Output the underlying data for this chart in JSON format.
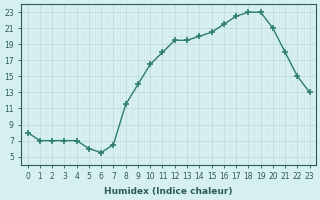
{
  "xlabel": "Humidex (Indice chaleur)",
  "ylabel": "",
  "x": [
    0,
    1,
    2,
    3,
    4,
    5,
    6,
    7,
    8,
    9,
    10,
    11,
    12,
    13,
    14,
    15,
    16,
    17,
    18,
    19,
    20,
    21,
    22,
    23
  ],
  "y": [
    8,
    7,
    7,
    7,
    7,
    6,
    5.5,
    6.5,
    11.5,
    14,
    16.5,
    18,
    19.5,
    19.5,
    20,
    20.5,
    21.5,
    22.5,
    23,
    23,
    21,
    18,
    15,
    13
  ],
  "line_color": "#2e7d6e",
  "marker": "+",
  "marker_size": 4,
  "marker_lw": 1.2,
  "line_width": 1.0,
  "linestyle": "-",
  "bg_color": "#d6f0f0",
  "grid_major_color": "#c4dada",
  "grid_minor_color": "#d0e6e6",
  "ylim": [
    4,
    24
  ],
  "xlim": [
    -0.5,
    23.5
  ],
  "yticks": [
    5,
    7,
    9,
    11,
    13,
    15,
    17,
    19,
    21,
    23
  ],
  "xticks": [
    0,
    1,
    2,
    3,
    4,
    5,
    6,
    7,
    8,
    9,
    10,
    11,
    12,
    13,
    14,
    15,
    16,
    17,
    18,
    19,
    20,
    21,
    22,
    23
  ],
  "label_fontsize": 6.5,
  "tick_fontsize": 5.5,
  "tick_color": "#2e5a5a",
  "spine_color": "#2e5a5a"
}
